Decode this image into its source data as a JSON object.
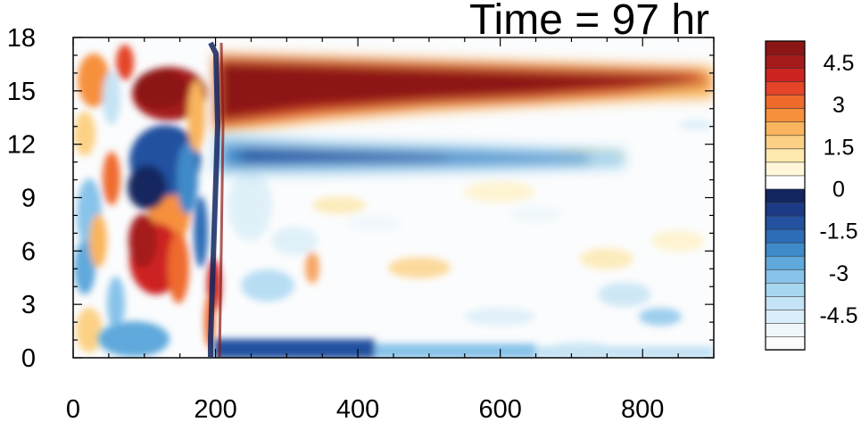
{
  "chart_data": {
    "type": "heatmap",
    "title": "Time = 97 hr",
    "xlabel": "",
    "ylabel": "",
    "xlim": [
      0,
      900
    ],
    "ylim": [
      0,
      18
    ],
    "x_ticks": [
      0,
      200,
      400,
      600,
      800
    ],
    "y_ticks": [
      0,
      3,
      6,
      9,
      12,
      15,
      18
    ],
    "colorbar": {
      "levels": [
        -5.5,
        -5,
        -4.5,
        -4,
        -3.5,
        -3,
        -2.5,
        -2,
        -1.5,
        -1,
        -0.5,
        0,
        0.5,
        1,
        1.5,
        2,
        2.5,
        3,
        3.5,
        4,
        4.5,
        5,
        5.5
      ],
      "labels": [
        "4.5",
        "3",
        "1.5",
        "0",
        "-1.5",
        "-3",
        "-4.5"
      ],
      "label_values": [
        4.5,
        3,
        1.5,
        0,
        -1.5,
        -3,
        -4.5
      ],
      "colors": [
        "#fbfbfb",
        "#eff7fb",
        "#d9eef8",
        "#c4e3f4",
        "#a7d6f1",
        "#87c3ea",
        "#5fa9dc",
        "#3f8ac9",
        "#2d6cb6",
        "#2451a0",
        "#1d3a86",
        "#12255f",
        "#ffffff",
        "#fff7d8",
        "#fde8ad",
        "#fcd185",
        "#f9b55d",
        "#f6903c",
        "#ef6a2d",
        "#e44427",
        "#cd2422",
        "#a51b1b",
        "#8c1516"
      ],
      "legend_placement": "right"
    },
    "features": [
      {
        "x": [
          240,
          800
        ],
        "y": [
          12.5,
          16.5
        ],
        "value": 5.5
      },
      {
        "x": [
          240,
          700
        ],
        "y": [
          10.8,
          12.2
        ],
        "value": -3.5
      },
      {
        "x": [
          100,
          230
        ],
        "y": [
          13,
          16.5
        ],
        "value": 5
      },
      {
        "x": [
          90,
          220
        ],
        "y": [
          8.5,
          12.5
        ],
        "value": -5
      },
      {
        "x": [
          90,
          220
        ],
        "y": [
          3,
          8
        ],
        "value": 4
      },
      {
        "x": [
          200,
          420
        ],
        "y": [
          0,
          0.8
        ],
        "value": -4
      }
    ]
  }
}
